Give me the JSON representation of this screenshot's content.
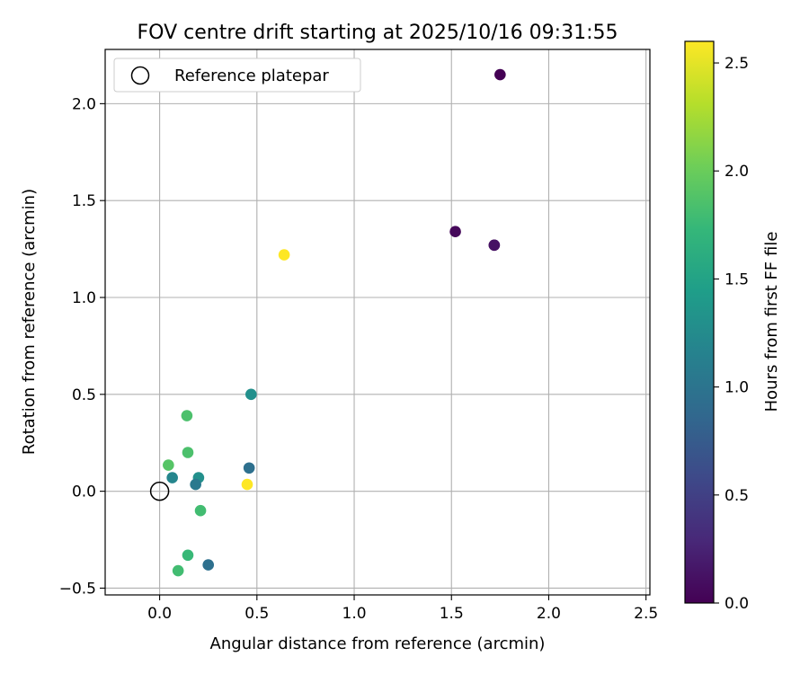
{
  "chart_data": {
    "type": "scatter",
    "title": "FOV centre drift starting at 2025/10/16 09:31:55",
    "xlabel": "Angular distance from reference (arcmin)",
    "ylabel": "Rotation from reference (arcmin)",
    "xlim": [
      -0.28,
      2.52
    ],
    "ylim": [
      -0.535,
      2.28
    ],
    "xticks": [
      0.0,
      0.5,
      1.0,
      1.5,
      2.0,
      2.5
    ],
    "xtick_labels": [
      "0.0",
      "0.5",
      "1.0",
      "1.5",
      "2.0",
      "2.5"
    ],
    "yticks": [
      -0.5,
      0.0,
      0.5,
      1.0,
      1.5,
      2.0
    ],
    "ytick_labels": [
      "−0.5",
      "0.0",
      "0.5",
      "1.0",
      "1.5",
      "2.0"
    ],
    "grid": true,
    "legend": {
      "placement": "upper-left",
      "label": "Reference platepar"
    },
    "reference_point": {
      "x": 0.0,
      "y": 0.0
    },
    "colorbar": {
      "label": "Hours from first FF file",
      "range": [
        0.0,
        2.6
      ],
      "ticks": [
        0.0,
        0.5,
        1.0,
        1.5,
        2.0,
        2.5
      ],
      "tick_labels": [
        "0.0",
        "0.5",
        "1.0",
        "1.5",
        "2.0",
        "2.5"
      ],
      "colormap": [
        "#440154",
        "#482878",
        "#3e4989",
        "#31688e",
        "#26828e",
        "#1f9e89",
        "#35b779",
        "#6ece58",
        "#b5de2b",
        "#fde725"
      ]
    },
    "points": [
      {
        "x": 1.75,
        "y": 2.15,
        "hours": 0.0
      },
      {
        "x": 1.52,
        "y": 1.34,
        "hours": 0.05
      },
      {
        "x": 1.72,
        "y": 1.27,
        "hours": 0.08
      },
      {
        "x": 1.72,
        "y": 1.27,
        "hours": 0.12
      },
      {
        "x": 0.64,
        "y": 1.22,
        "hours": 2.6
      },
      {
        "x": 0.47,
        "y": 0.5,
        "hours": 1.3
      },
      {
        "x": 0.46,
        "y": 0.12,
        "hours": 0.95
      },
      {
        "x": 0.45,
        "y": 0.035,
        "hours": 2.6
      },
      {
        "x": 0.14,
        "y": 0.39,
        "hours": 1.85
      },
      {
        "x": 0.145,
        "y": 0.2,
        "hours": 1.85
      },
      {
        "x": 0.045,
        "y": 0.135,
        "hours": 1.9
      },
      {
        "x": 0.065,
        "y": 0.07,
        "hours": 1.2
      },
      {
        "x": 0.2,
        "y": 0.07,
        "hours": 1.3
      },
      {
        "x": 0.185,
        "y": 0.035,
        "hours": 1.05
      },
      {
        "x": 0.21,
        "y": -0.1,
        "hours": 1.8
      },
      {
        "x": 0.145,
        "y": -0.33,
        "hours": 1.75
      },
      {
        "x": 0.095,
        "y": -0.41,
        "hours": 1.8
      },
      {
        "x": 0.25,
        "y": -0.38,
        "hours": 0.95
      }
    ]
  }
}
